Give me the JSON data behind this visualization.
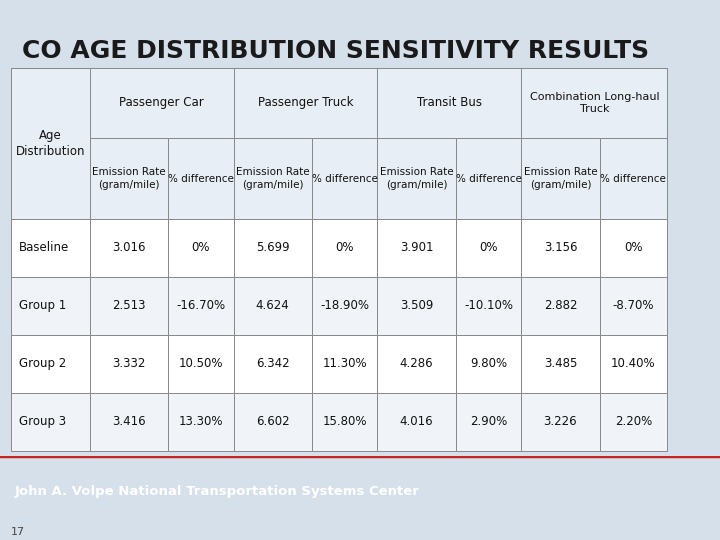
{
  "title": "CO AGE DISTRIBUTION SENSITIVITY RESULTS",
  "title_fontsize": 18,
  "title_color": "#1a1a1a",
  "background_color": "#d6e0ea",
  "header_cell_bg": "#e8eef5",
  "data_cell_bg": "#ffffff",
  "alt_cell_bg": "#f0f4f8",
  "border_color": "#888888",
  "footer_bg": "#3a6a96",
  "footer_red_line": "#cc2222",
  "footer_text": "John A. Volpe National Transportation Systems Center",
  "page_number": "17",
  "col_groups": [
    "Passenger Car",
    "Passenger Truck",
    "Transit Bus",
    "Combination Long-haul\nTruck"
  ],
  "sub_col1": "Emission Rate\n(gram/mile)",
  "sub_col2": "% difference",
  "row_header": "Age\nDistribution",
  "row_labels": [
    "Baseline",
    "Group 1",
    "Group 2",
    "Group 3"
  ],
  "data": [
    [
      "3.016",
      "0%",
      "5.699",
      "0%",
      "3.901",
      "0%",
      "3.156",
      "0%"
    ],
    [
      "2.513",
      "-16.70%",
      "4.624",
      "-18.90%",
      "3.509",
      "-10.10%",
      "2.882",
      "-8.70%"
    ],
    [
      "3.332",
      "10.50%",
      "6.342",
      "11.30%",
      "4.286",
      "9.80%",
      "3.485",
      "10.40%"
    ],
    [
      "3.416",
      "13.30%",
      "6.602",
      "15.80%",
      "4.016",
      "2.90%",
      "3.226",
      "2.20%"
    ]
  ]
}
